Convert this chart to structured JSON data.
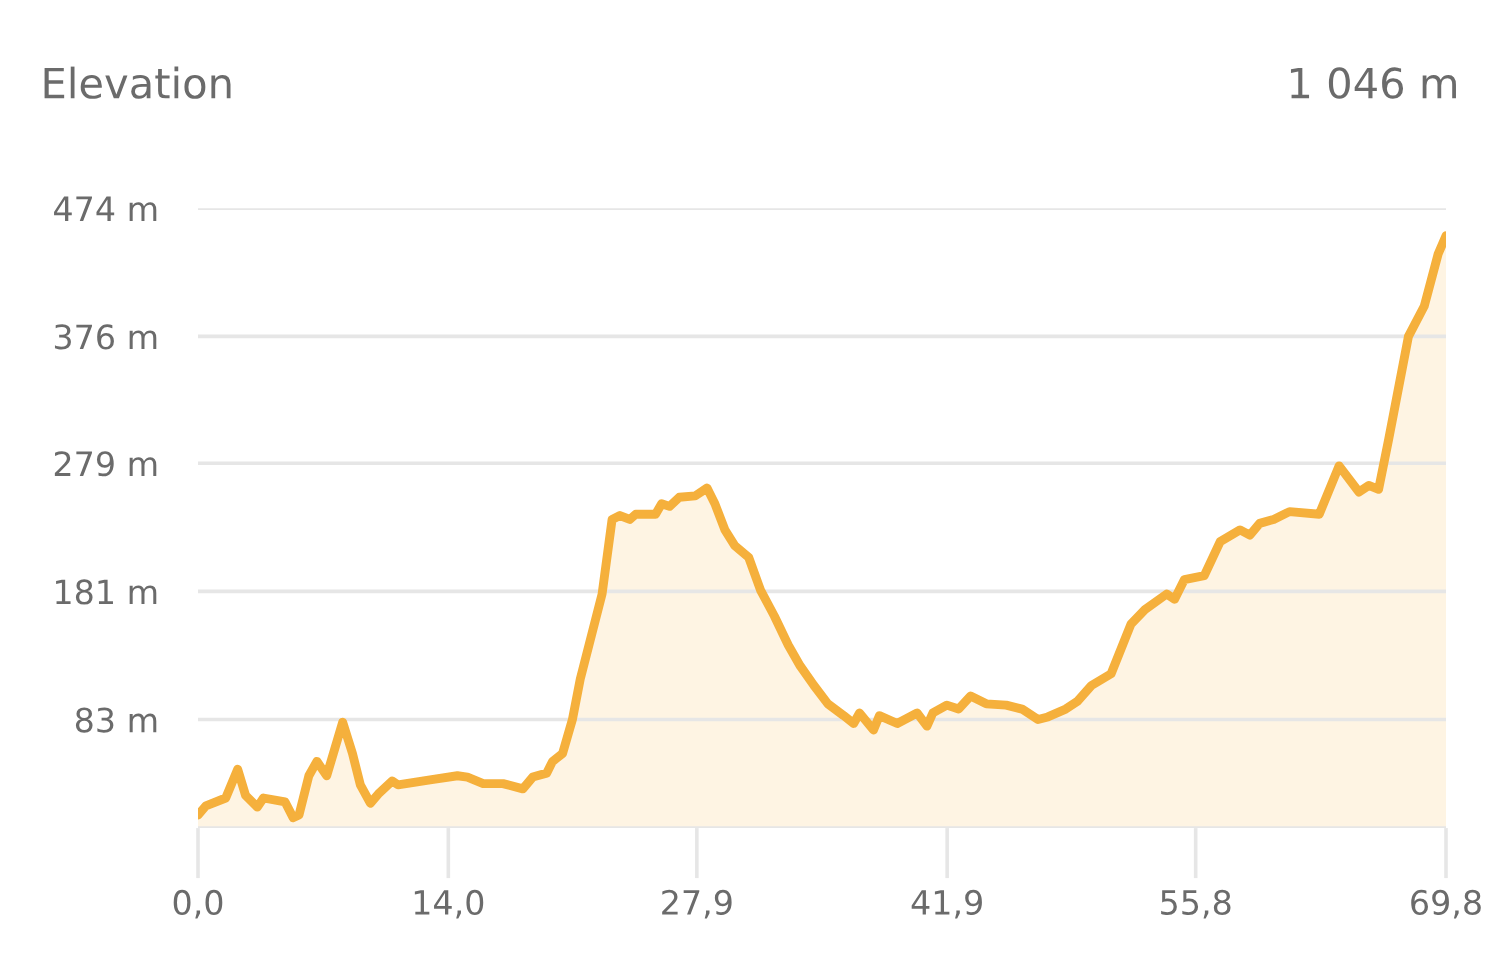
{
  "chart_data": {
    "type": "area",
    "title": "Elevation",
    "annotations": [
      "1 046 m"
    ],
    "x": [
      0,
      0.44,
      1.55,
      2.22,
      2.66,
      3.32,
      3.66,
      4.87,
      5.32,
      5.65,
      6.2,
      6.65,
      7.2,
      8.09,
      8.64,
      9.08,
      9.64,
      10.08,
      10.86,
      11.19,
      13.07,
      14.51,
      15.07,
      15.95,
      17.06,
      18.17,
      18.72,
      19.5,
      19.83,
      20.39,
      20.94,
      21.38,
      22.6,
      23.16,
      23.6,
      24.15,
      24.48,
      25.59,
      25.93,
      26.37,
      26.92,
      27.81,
      28.47,
      28.91,
      29.47,
      30.02,
      30.8,
      31.46,
      32.24,
      33.01,
      33.68,
      34.45,
      35.23,
      36.11,
      36.67,
      37.0,
      37.78,
      38.11,
      39.11,
      40.22,
      40.77,
      41.1,
      41.88,
      42.54,
      43.21,
      44.09,
      45.2,
      46.09,
      46.98,
      47.53,
      48.53,
      49.19,
      49.97,
      51.07,
      52.18,
      52.96,
      54.18,
      54.62,
      55.17,
      56.28,
      57.17,
      58.28,
      58.83,
      59.38,
      60.16,
      61.05,
      62.71,
      63.82,
      64.15,
      64.93,
      65.48,
      66.03,
      66.59,
      67.7,
      68.58,
      69.36,
      69.8
    ],
    "series": [
      {
        "color": "#f5b03c",
        "values": [
          10,
          17,
          23,
          45,
          25,
          16,
          23,
          20,
          8,
          10,
          40,
          51,
          40,
          81,
          57,
          33,
          19,
          26,
          36,
          33,
          37,
          40,
          39,
          34,
          34,
          30,
          39,
          42,
          51,
          57,
          83,
          114,
          179,
          236,
          239,
          236,
          240,
          240,
          248,
          246,
          253,
          254,
          260,
          248,
          228,
          216,
          207,
          182,
          162,
          140,
          124,
          109,
          95,
          86,
          80,
          88,
          75,
          86,
          80,
          88,
          78,
          88,
          94,
          91,
          101,
          95,
          94,
          91,
          83,
          85,
          91,
          97,
          109,
          118,
          156,
          167,
          179,
          175,
          190,
          193,
          219,
          228,
          224,
          233,
          236,
          242,
          240,
          277,
          271,
          257,
          262,
          259,
          297,
          376,
          399,
          439,
          453
        ]
      }
    ],
    "xlim": [
      0,
      69.8
    ],
    "ylim": [
      0,
      474
    ],
    "xticks": [
      {
        "value": 0,
        "label": "0,0"
      },
      {
        "value": 14.0,
        "label": "14,0"
      },
      {
        "value": 27.9,
        "label": "27,9"
      },
      {
        "value": 41.9,
        "label": "41,9"
      },
      {
        "value": 55.8,
        "label": "55,8"
      },
      {
        "value": 69.8,
        "label": "69,8"
      }
    ],
    "yticks": [
      {
        "value": 0,
        "label": null
      },
      {
        "value": 83,
        "label": "83 m"
      },
      {
        "value": 181,
        "label": "181 m"
      },
      {
        "value": 279,
        "label": "279 m"
      },
      {
        "value": 376,
        "label": "376 m"
      },
      {
        "value": 474,
        "label": "474 m"
      }
    ],
    "grid": "y"
  }
}
